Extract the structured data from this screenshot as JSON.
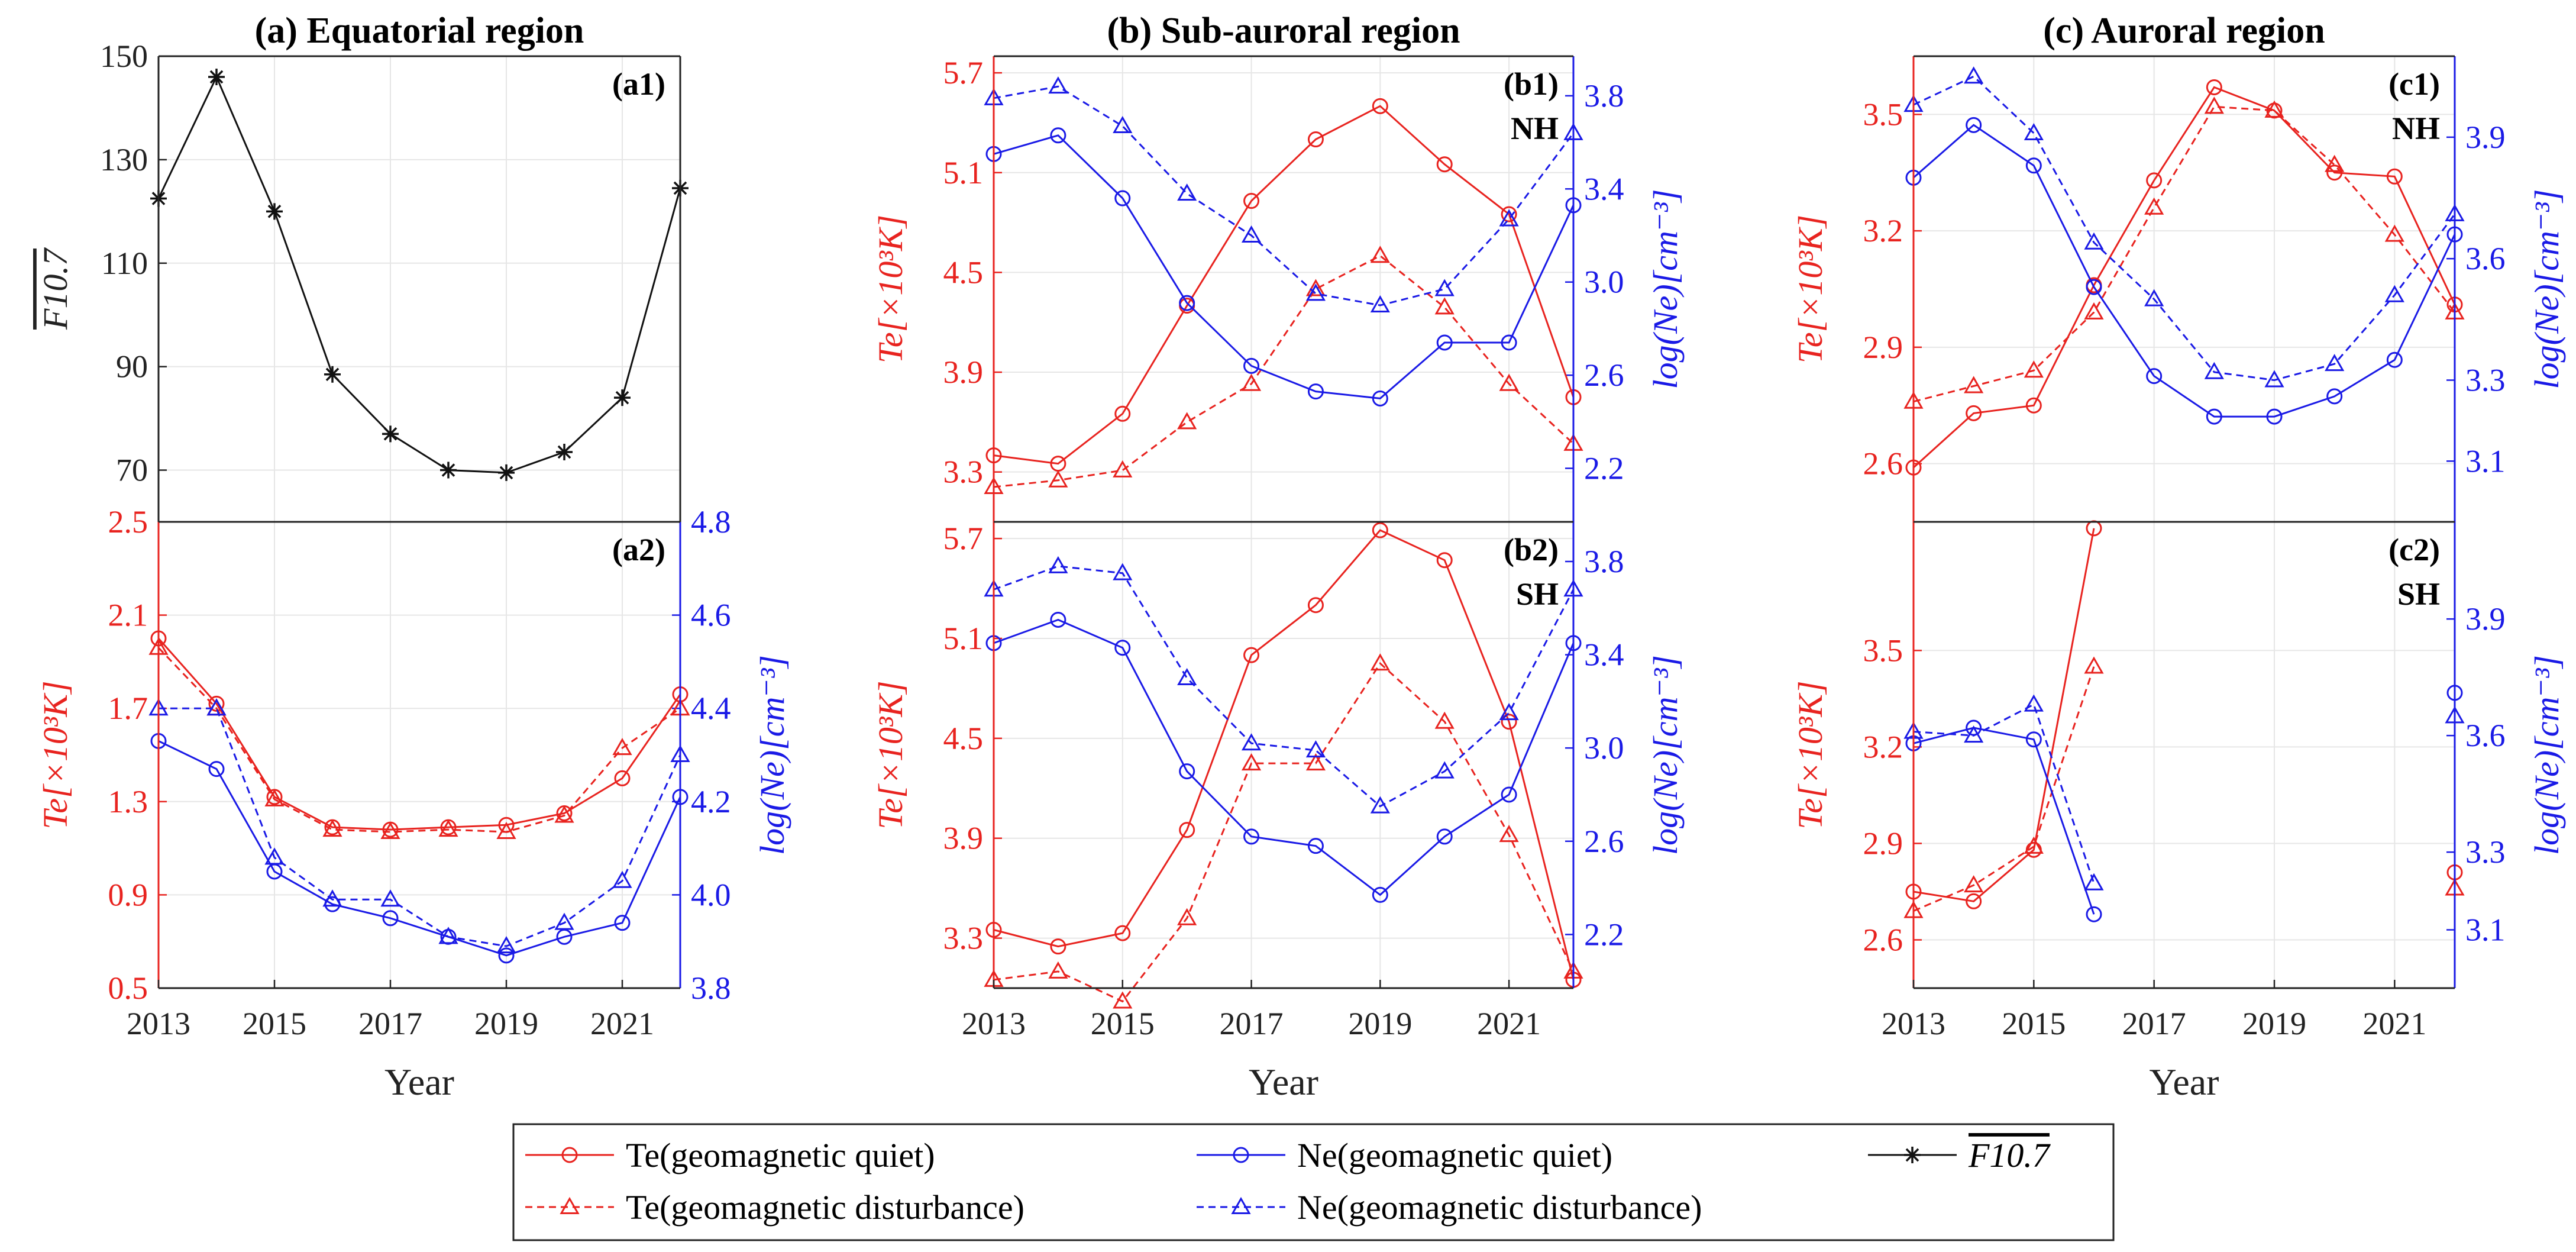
{
  "colors": {
    "te": "#e8231f",
    "ne": "#1a1ae6",
    "f107": "#111111",
    "grid": "#e6e6e6"
  },
  "chart_data": [
    {
      "id": "a",
      "type": "line",
      "title": "(a) Equatorial region",
      "xlabel": "Year",
      "x": [
        2013,
        2014,
        2015,
        2016,
        2017,
        2018,
        2019,
        2020,
        2021,
        2022
      ],
      "xticks": [
        2013,
        2015,
        2017,
        2019,
        2021
      ],
      "top": {
        "tag": "(a1)",
        "hemisphere": "",
        "left": {
          "label": "F10.7",
          "ylim": [
            60,
            150
          ],
          "ticks": [
            70,
            90,
            110,
            130,
            150
          ]
        },
        "series": [
          {
            "name": "F10.7",
            "axis": "left",
            "color": "f107",
            "marker": "star",
            "dash": false,
            "values": [
              122.5,
              146,
              120,
              88.5,
              77,
              70,
              69.5,
              73.5,
              84,
              124.5
            ]
          }
        ]
      },
      "bottom": {
        "tag": "(a2)",
        "hemisphere": "",
        "left": {
          "label": "Te[×10³K]",
          "ylim": [
            0.5,
            2.5
          ],
          "ticks": [
            0.5,
            0.9,
            1.3,
            1.7,
            2.1,
            2.5
          ]
        },
        "right": {
          "label": "log(Ne)[cm⁻³]",
          "ylim": [
            3.8,
            4.8
          ],
          "ticks": [
            3.8,
            4.0,
            4.2,
            4.4,
            4.6,
            4.8
          ]
        },
        "series": [
          {
            "name": "Te(geomagnetic quiet)",
            "axis": "left",
            "color": "te",
            "marker": "circle",
            "dash": false,
            "values": [
              2.0,
              1.72,
              1.32,
              1.19,
              1.18,
              1.19,
              1.2,
              1.25,
              1.4,
              1.76
            ]
          },
          {
            "name": "Te(geomagnetic disturbance)",
            "axis": "left",
            "color": "te",
            "marker": "triangle",
            "dash": true,
            "values": [
              1.96,
              1.7,
              1.31,
              1.18,
              1.17,
              1.18,
              1.17,
              1.24,
              1.53,
              1.7
            ]
          },
          {
            "name": "Ne(geomagnetic quiet)",
            "axis": "right",
            "color": "ne",
            "marker": "circle",
            "dash": false,
            "values": [
              4.33,
              4.27,
              4.05,
              3.98,
              3.95,
              3.91,
              3.87,
              3.91,
              3.94,
              4.21
            ]
          },
          {
            "name": "Ne(geomagnetic disturbance)",
            "axis": "right",
            "color": "ne",
            "marker": "triangle",
            "dash": true,
            "values": [
              4.4,
              4.4,
              4.08,
              3.99,
              3.99,
              3.91,
              3.89,
              3.94,
              4.03,
              4.3
            ]
          }
        ]
      }
    },
    {
      "id": "b",
      "type": "line",
      "title": "(b) Sub-auroral region",
      "xlabel": "Year",
      "x": [
        2013,
        2014,
        2015,
        2016,
        2017,
        2018,
        2019,
        2020,
        2021,
        2022
      ],
      "xticks": [
        2013,
        2015,
        2017,
        2019,
        2021
      ],
      "top": {
        "tag": "(b1)",
        "hemisphere": "NH",
        "left": {
          "label": "Te[×10³K]",
          "ylim": [
            3.0,
            5.8
          ],
          "ticks": [
            3.3,
            3.9,
            4.5,
            5.1,
            5.7
          ]
        },
        "right": {
          "label": "log(Ne)[cm⁻³]",
          "ylim": [
            1.97,
            3.97
          ],
          "ticks": [
            2.2,
            2.6,
            3.0,
            3.4,
            3.8
          ]
        },
        "series": [
          {
            "name": "Te(geomagnetic quiet)",
            "axis": "left",
            "color": "te",
            "marker": "circle",
            "dash": false,
            "values": [
              3.4,
              3.35,
              3.65,
              4.3,
              4.93,
              5.3,
              5.5,
              5.15,
              4.85,
              3.75
            ]
          },
          {
            "name": "Te(geomagnetic disturbance)",
            "axis": "left",
            "color": "te",
            "marker": "triangle",
            "dash": true,
            "values": [
              3.21,
              3.25,
              3.31,
              3.6,
              3.83,
              4.4,
              4.6,
              4.29,
              3.83,
              3.47
            ]
          },
          {
            "name": "Ne(geomagnetic quiet)",
            "axis": "right",
            "color": "ne",
            "marker": "circle",
            "dash": false,
            "values": [
              3.55,
              3.63,
              3.36,
              2.91,
              2.64,
              2.53,
              2.5,
              2.74,
              2.74,
              3.33
            ]
          },
          {
            "name": "Ne(geomagnetic disturbance)",
            "axis": "right",
            "color": "ne",
            "marker": "triangle",
            "dash": true,
            "values": [
              3.79,
              3.84,
              3.67,
              3.38,
              3.2,
              2.95,
              2.9,
              2.97,
              3.27,
              3.64
            ]
          }
        ]
      },
      "bottom": {
        "tag": "(b2)",
        "hemisphere": "SH",
        "left": {
          "label": "Te[×10³K]",
          "ylim": [
            3.0,
            5.8
          ],
          "ticks": [
            3.3,
            3.9,
            4.5,
            5.1,
            5.7
          ]
        },
        "right": {
          "label": "log(Ne)[cm⁻³]",
          "ylim": [
            1.97,
            3.97
          ],
          "ticks": [
            2.2,
            2.6,
            3.0,
            3.4,
            3.8
          ]
        },
        "series": [
          {
            "name": "Te(geomagnetic quiet)",
            "axis": "left",
            "color": "te",
            "marker": "circle",
            "dash": false,
            "values": [
              3.35,
              3.25,
              3.33,
              3.95,
              5.0,
              5.3,
              5.75,
              5.57,
              4.6,
              3.05
            ]
          },
          {
            "name": "Te(geomagnetic disturbance)",
            "axis": "left",
            "color": "te",
            "marker": "triangle",
            "dash": true,
            "values": [
              3.05,
              3.1,
              2.92,
              3.42,
              4.35,
              4.35,
              4.95,
              4.6,
              3.92,
              3.1
            ]
          },
          {
            "name": "Ne(geomagnetic quiet)",
            "axis": "right",
            "color": "ne",
            "marker": "circle",
            "dash": false,
            "values": [
              3.45,
              3.55,
              3.43,
              2.9,
              2.62,
              2.58,
              2.37,
              2.62,
              2.8,
              3.45
            ]
          },
          {
            "name": "Ne(geomagnetic disturbance)",
            "axis": "right",
            "color": "ne",
            "marker": "triangle",
            "dash": true,
            "values": [
              3.68,
              3.78,
              3.75,
              3.3,
              3.02,
              2.99,
              2.75,
              2.9,
              3.15,
              3.68
            ]
          }
        ]
      }
    },
    {
      "id": "c",
      "type": "line",
      "title": "(c) Auroral region",
      "xlabel": "Year",
      "x": [
        2013,
        2014,
        2015,
        2016,
        2017,
        2018,
        2019,
        2020,
        2021,
        2022
      ],
      "xticks": [
        2013,
        2015,
        2017,
        2019,
        2021
      ],
      "top": {
        "tag": "(c1)",
        "hemisphere": "NH",
        "left": {
          "label": "Te[×10³K]",
          "ylim": [
            2.45,
            3.65
          ],
          "ticks": [
            2.6,
            2.9,
            3.2,
            3.5
          ]
        },
        "right": {
          "label": "log(Ne)[cm⁻³]",
          "ylim": [
            2.95,
            4.1
          ],
          "ticks": [
            3.1,
            3.3,
            3.6,
            3.9
          ]
        },
        "series": [
          {
            "name": "Te(geomagnetic quiet)",
            "axis": "left",
            "color": "te",
            "marker": "circle",
            "dash": false,
            "values": [
              2.59,
              2.73,
              2.75,
              3.06,
              3.33,
              3.57,
              3.51,
              3.35,
              3.34,
              3.01
            ]
          },
          {
            "name": "Te(geomagnetic disturbance)",
            "axis": "left",
            "color": "te",
            "marker": "triangle",
            "dash": true,
            "values": [
              2.76,
              2.8,
              2.84,
              2.99,
              3.26,
              3.52,
              3.51,
              3.37,
              3.19,
              2.99
            ]
          },
          {
            "name": "Ne(geomagnetic quiet)",
            "axis": "right",
            "color": "ne",
            "marker": "circle",
            "dash": false,
            "values": [
              3.8,
              3.93,
              3.83,
              3.53,
              3.31,
              3.21,
              3.21,
              3.26,
              3.35,
              3.66
            ]
          },
          {
            "name": "Ne(geomagnetic disturbance)",
            "axis": "right",
            "color": "ne",
            "marker": "triangle",
            "dash": true,
            "values": [
              3.98,
              4.05,
              3.91,
              3.64,
              3.5,
              3.32,
              3.3,
              3.34,
              3.51,
              3.71
            ]
          }
        ]
      },
      "bottom": {
        "tag": "(c2)",
        "hemisphere": "SH",
        "left": {
          "label": "Te[×10³K]",
          "ylim": [
            2.45,
            3.9
          ],
          "ticks": [
            2.6,
            2.9,
            3.2,
            3.5
          ]
        },
        "right": {
          "label": "log(Ne)[cm⁻³]",
          "ylim": [
            2.95,
            4.15
          ],
          "ticks": [
            3.1,
            3.3,
            3.6,
            3.9
          ]
        },
        "series": [
          {
            "name": "Te(geomagnetic quiet)",
            "axis": "left",
            "color": "te",
            "marker": "circle",
            "dash": false,
            "values": [
              2.75,
              2.72,
              2.88,
              3.88,
              null,
              null,
              null,
              null,
              null,
              2.81
            ]
          },
          {
            "name": "Te(geomagnetic disturbance)",
            "axis": "left",
            "color": "te",
            "marker": "triangle",
            "dash": true,
            "values": [
              2.69,
              2.77,
              2.89,
              3.45,
              null,
              null,
              null,
              null,
              null,
              2.76
            ]
          },
          {
            "name": "Ne(geomagnetic quiet)",
            "axis": "right",
            "color": "ne",
            "marker": "circle",
            "dash": false,
            "values": [
              3.58,
              3.62,
              3.59,
              3.14,
              null,
              null,
              null,
              null,
              null,
              3.71
            ]
          },
          {
            "name": "Ne(geomagnetic disturbance)",
            "axis": "right",
            "color": "ne",
            "marker": "triangle",
            "dash": true,
            "values": [
              3.61,
              3.6,
              3.68,
              3.22,
              null,
              null,
              null,
              null,
              null,
              3.65
            ]
          }
        ]
      }
    }
  ],
  "legend": {
    "items": [
      {
        "label": "Te(geomagnetic quiet)",
        "color": "te",
        "marker": "circle",
        "dash": false
      },
      {
        "label": "Ne(geomagnetic quiet)",
        "color": "ne",
        "marker": "circle",
        "dash": false
      },
      {
        "label": "F10.7",
        "color": "f107",
        "marker": "star",
        "dash": false
      },
      {
        "label": "Te(geomagnetic disturbance)",
        "color": "te",
        "marker": "triangle",
        "dash": true
      },
      {
        "label": "Ne(geomagnetic disturbance)",
        "color": "ne",
        "marker": "triangle",
        "dash": true
      }
    ]
  }
}
